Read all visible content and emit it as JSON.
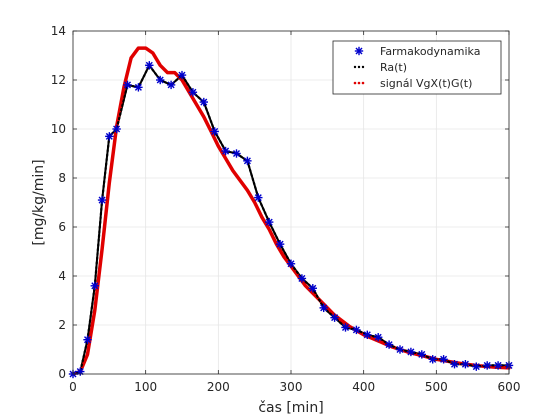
{
  "chart_data": {
    "type": "line",
    "xlabel": "čas [min]",
    "ylabel": "[mg/kg/min]",
    "xlim": [
      0,
      600
    ],
    "ylim": [
      0,
      14
    ],
    "xticks": [
      0,
      100,
      200,
      300,
      400,
      500,
      600
    ],
    "yticks": [
      0,
      2,
      4,
      6,
      8,
      10,
      12,
      14
    ],
    "grid": true,
    "legend_position": "top-right",
    "series": [
      {
        "name": "Farmakodynamika",
        "style": "blue asterisk markers",
        "color": "#0000cc",
        "x": [
          0,
          10,
          20,
          30,
          40,
          50,
          60,
          75,
          90,
          105,
          120,
          135,
          150,
          165,
          180,
          195,
          210,
          225,
          240,
          255,
          270,
          285,
          300,
          315,
          330,
          345,
          360,
          375,
          390,
          405,
          420,
          435,
          450,
          465,
          480,
          495,
          510,
          525,
          540,
          555,
          570,
          585,
          600
        ],
        "y": [
          0.0,
          0.1,
          1.4,
          3.6,
          7.1,
          9.7,
          10.0,
          11.8,
          11.7,
          12.6,
          12.0,
          11.8,
          12.2,
          11.5,
          11.1,
          9.9,
          9.1,
          9.0,
          8.7,
          7.2,
          6.2,
          5.3,
          4.5,
          3.9,
          3.5,
          2.7,
          2.3,
          1.9,
          1.8,
          1.6,
          1.5,
          1.2,
          1.0,
          0.9,
          0.8,
          0.6,
          0.6,
          0.4,
          0.4,
          0.3,
          0.35,
          0.35,
          0.35
        ]
      },
      {
        "name": "Ra(t)",
        "style": "black dotted line",
        "color": "#000000",
        "x": [
          0,
          10,
          20,
          30,
          40,
          50,
          60,
          75,
          90,
          105,
          120,
          135,
          150,
          165,
          180,
          195,
          210,
          225,
          240,
          255,
          270,
          285,
          300,
          315,
          330,
          345,
          360,
          375,
          390,
          405,
          420,
          435,
          450,
          465,
          480,
          495,
          510,
          525,
          540,
          555,
          570,
          585,
          600
        ],
        "y": [
          0.0,
          0.1,
          1.4,
          3.6,
          7.1,
          9.7,
          10.0,
          11.8,
          11.7,
          12.6,
          12.0,
          11.8,
          12.2,
          11.5,
          11.1,
          9.9,
          9.1,
          9.0,
          8.7,
          7.2,
          6.2,
          5.3,
          4.5,
          3.9,
          3.5,
          2.7,
          2.3,
          1.9,
          1.8,
          1.6,
          1.5,
          1.2,
          1.0,
          0.9,
          0.8,
          0.6,
          0.6,
          0.4,
          0.4,
          0.3,
          0.35,
          0.35,
          0.35
        ]
      },
      {
        "name": "signál VgX(t)G(t)",
        "style": "red dotted line",
        "color": "#e00000",
        "x": [
          0,
          10,
          20,
          30,
          40,
          50,
          60,
          70,
          80,
          90,
          100,
          110,
          120,
          130,
          140,
          150,
          160,
          170,
          180,
          190,
          200,
          210,
          220,
          230,
          240,
          250,
          260,
          270,
          280,
          290,
          300,
          320,
          340,
          360,
          380,
          400,
          420,
          440,
          460,
          480,
          500,
          520,
          540,
          560,
          580,
          600
        ],
        "y": [
          0.0,
          0.1,
          0.8,
          2.6,
          5.1,
          7.8,
          10.1,
          11.7,
          12.9,
          13.3,
          13.3,
          13.1,
          12.6,
          12.3,
          12.3,
          12.0,
          11.5,
          11.0,
          10.5,
          9.9,
          9.3,
          8.8,
          8.3,
          7.9,
          7.5,
          7.0,
          6.4,
          5.9,
          5.3,
          4.8,
          4.4,
          3.6,
          3.0,
          2.4,
          1.95,
          1.6,
          1.35,
          1.1,
          0.9,
          0.75,
          0.6,
          0.5,
          0.4,
          0.33,
          0.28,
          0.25
        ]
      }
    ]
  }
}
